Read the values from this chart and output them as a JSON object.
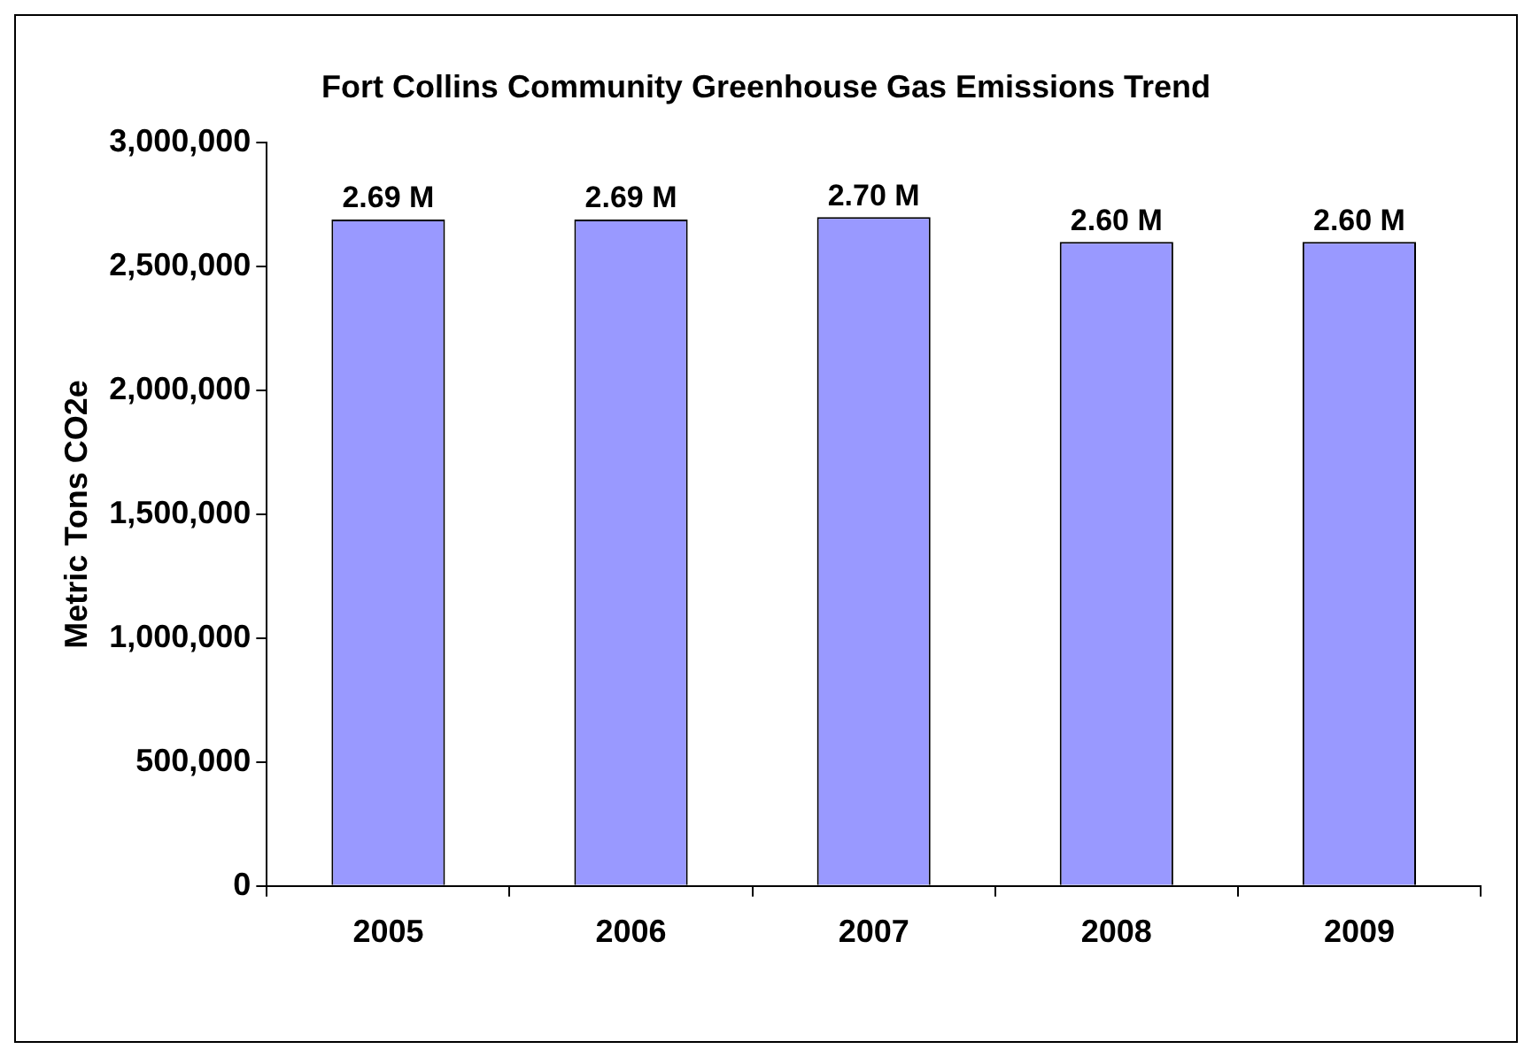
{
  "chart_data": {
    "type": "bar",
    "title": "Fort Collins Community Greenhouse Gas Emissions Trend",
    "ylabel": "Metric Tons CO2e",
    "categories": [
      "2005",
      "2006",
      "2007",
      "2008",
      "2009"
    ],
    "values": [
      2690000,
      2690000,
      2700000,
      2600000,
      2600000
    ],
    "value_labels": [
      "2.69 M",
      "2.69 M",
      "2.70 M",
      "2.60 M",
      "2.60 M"
    ],
    "color": "#9999ff",
    "ylim": [
      0,
      3000000
    ],
    "yticks": [
      0,
      {
        "value": 500000,
        "label": "500,000"
      },
      {
        "value": 1000000,
        "label": "1,000,000"
      },
      {
        "value": 1500000,
        "label": "1,500,000"
      },
      {
        "value": 2000000,
        "label": "2,000,000"
      },
      {
        "value": 2500000,
        "label": "2,500,000"
      },
      {
        "value": 3000000,
        "label": "3,000,000"
      }
    ],
    "grid": false,
    "legend": false
  }
}
